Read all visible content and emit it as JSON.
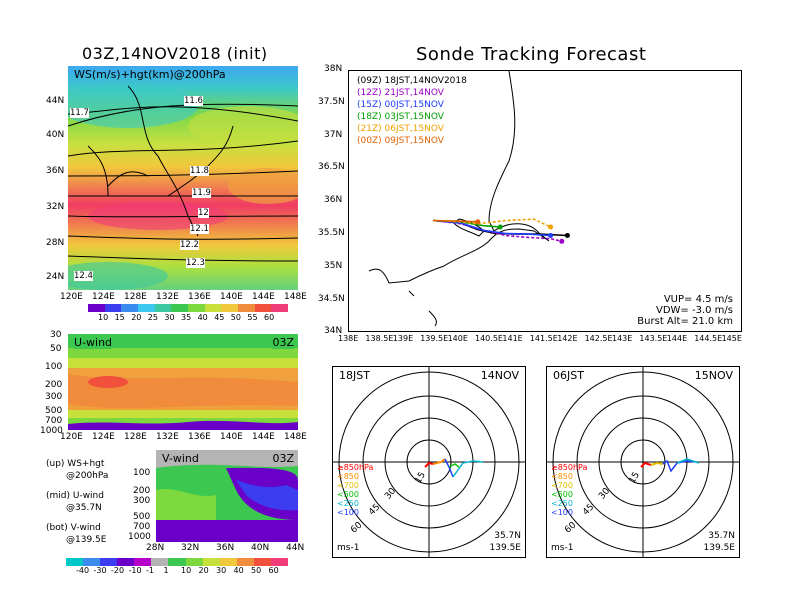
{
  "left": {
    "title": "03Z,14NOV2018 (init)",
    "ws_panel": {
      "label": "WS(m/s)+hgt(km)@200hPa",
      "lat_labels": [
        "44N",
        "40N",
        "36N",
        "32N",
        "28N",
        "24N"
      ],
      "lon_labels": [
        "120E",
        "124E",
        "128E",
        "132E",
        "136E",
        "140E",
        "144E",
        "148E"
      ],
      "contour_labels": [
        "11.7",
        "11.6",
        "11.8",
        "11.9",
        "12",
        "12.1",
        "12.2",
        "12.3",
        "12.4"
      ],
      "colorbar_labels": [
        "10",
        "15",
        "20",
        "25",
        "30",
        "35",
        "40",
        "45",
        "50",
        "55",
        "60"
      ]
    },
    "u_panel": {
      "label": "U-wind",
      "time": "03Z",
      "pressure_labels": [
        "30",
        "50",
        "100",
        "200",
        "300",
        "500",
        "700",
        "1000"
      ],
      "lon_labels": [
        "120E",
        "124E",
        "128E",
        "132E",
        "136E",
        "140E",
        "144E",
        "148E"
      ]
    },
    "v_panel": {
      "label": "V-wind",
      "time": "03Z",
      "pressure_labels": [
        "100",
        "200",
        "300",
        "500",
        "700",
        "1000"
      ],
      "lat_labels": [
        "28N",
        "32N",
        "36N",
        "40N",
        "44N"
      ]
    },
    "notes": [
      {
        "a": "(up) WS+hgt",
        "b": "@200hPa"
      },
      {
        "a": "(mid) U-wind",
        "b": "@35.7N"
      },
      {
        "a": "(bot) V-wind",
        "b": "@139.5E"
      }
    ],
    "bottom_colorbar_labels": [
      "-40",
      "-30",
      "-20",
      "-10",
      "-1",
      "1",
      "10",
      "20",
      "30",
      "40",
      "50",
      "60"
    ]
  },
  "right": {
    "title": "Sonde Tracking Forecast",
    "track_legend": [
      {
        "z": "(09Z)",
        "t": "18JST,14NOV2018",
        "color": "#000000"
      },
      {
        "z": "(12Z)",
        "t": "21JST,14NOV",
        "color": "#9b00c8"
      },
      {
        "z": "(15Z)",
        "t": "00JST,15NOV",
        "color": "#1e3cff"
      },
      {
        "z": "(18Z)",
        "t": "03JST,15NOV",
        "color": "#00a000"
      },
      {
        "z": "(21Z)",
        "t": "06JST,15NOV",
        "color": "#f0a000"
      },
      {
        "z": "(00Z)",
        "t": "09JST,15NOV",
        "color": "#e06000"
      }
    ],
    "lat_labels": [
      "38N",
      "37.5N",
      "37N",
      "36.5N",
      "36N",
      "35.5N",
      "35N",
      "34.5N",
      "34N"
    ],
    "lon_labels": [
      "138E",
      "138.5E",
      "139E",
      "139.5E",
      "140E",
      "140.5E",
      "141E",
      "141.5E",
      "142E",
      "142.5E",
      "143E",
      "143.5E",
      "144E",
      "144.5E",
      "145E"
    ],
    "params": [
      "VUP=  4.5  m/s",
      "VDW= -3.0  m/s",
      "Burst Alt=  21.0  km"
    ],
    "hodo_left": {
      "time": "18JST",
      "date": "14NOV",
      "lat": "35.7N",
      "lon": "139.5E",
      "unit": "ms-1"
    },
    "hodo_right": {
      "time": "06JST",
      "date": "15NOV",
      "lat": "35.7N",
      "lon": "139.5E",
      "unit": "ms-1"
    },
    "ring_labels": [
      "15",
      "30",
      "45",
      "60"
    ],
    "hodo_legend": [
      {
        "t": "≥850hPa",
        "color": "#ff0000"
      },
      {
        "t": "<850",
        "color": "#ff8c00"
      },
      {
        "t": "<700",
        "color": "#e0c000"
      },
      {
        "t": "<500",
        "color": "#00c000"
      },
      {
        "t": "<250",
        "color": "#00b4c8"
      },
      {
        "t": "<100",
        "color": "#1e3cff"
      }
    ]
  },
  "chart_data": {
    "type": "line",
    "title": "Sonde Tracking Forecast",
    "xlabel": "",
    "ylabel": "",
    "xlim": [
      138,
      145
    ],
    "ylim": [
      34,
      38
    ],
    "series": [
      {
        "name": "(09Z) 18JST,14NOV2018",
        "x": [
          139.5,
          140.0,
          140.3,
          140.6,
          141.0,
          141.4,
          141.9
        ],
        "y": [
          35.7,
          35.66,
          35.56,
          35.5,
          35.49,
          35.49,
          35.47
        ]
      },
      {
        "name": "(12Z) 21JST,14NOV",
        "x": [
          139.5,
          140.0,
          140.4,
          140.8,
          141.2,
          141.6,
          141.8
        ],
        "y": [
          35.7,
          35.65,
          35.55,
          35.47,
          35.44,
          35.42,
          35.38
        ]
      },
      {
        "name": "(15Z) 00JST,15NOV",
        "x": [
          139.5,
          140.0,
          140.4,
          140.8,
          141.2,
          141.6
        ],
        "y": [
          35.7,
          35.66,
          35.55,
          35.5,
          35.49,
          35.47
        ]
      },
      {
        "name": "(18Z) 03JST,15NOV",
        "x": [
          139.5,
          140.0,
          140.4,
          140.7
        ],
        "y": [
          35.7,
          35.68,
          35.62,
          35.6
        ]
      },
      {
        "name": "(21Z) 06JST,15NOV",
        "x": [
          139.5,
          140.0,
          140.3,
          140.8,
          141.3,
          141.6
        ],
        "y": [
          35.7,
          35.68,
          35.65,
          35.7,
          35.72,
          35.6
        ]
      },
      {
        "name": "(00Z) 09JST,15NOV",
        "x": [
          139.5,
          140.0,
          140.3
        ],
        "y": [
          35.7,
          35.69,
          35.68
        ]
      }
    ]
  }
}
